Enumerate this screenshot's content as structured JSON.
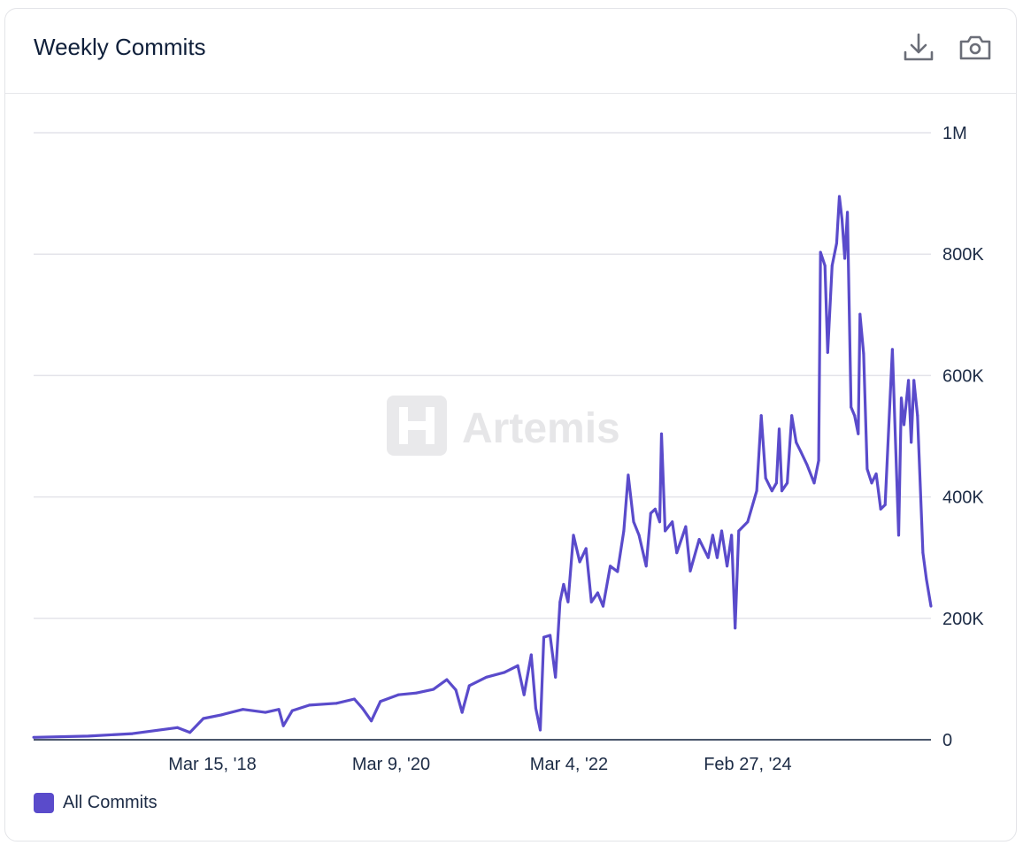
{
  "header": {
    "title": "Weekly Commits",
    "download_icon": "download-icon",
    "camera_icon": "camera-icon"
  },
  "watermark": "Artemis",
  "colors": {
    "series": "#5a4bcb",
    "grid": "#e4e4ea",
    "axis": "#0f1f3a"
  },
  "chart_data": {
    "type": "line",
    "title": "Weekly Commits",
    "xlabel": "",
    "ylabel": "",
    "x_units": "decimal year",
    "xlim": [
      2016.21,
      2026.2
    ],
    "ylim": [
      0,
      1000000
    ],
    "x_ticks": [
      {
        "value": 2018.2,
        "label": "Mar 15, '18"
      },
      {
        "value": 2020.19,
        "label": "Mar 9, '20"
      },
      {
        "value": 2022.17,
        "label": "Mar 4, '22"
      },
      {
        "value": 2024.16,
        "label": "Feb 27, '24"
      }
    ],
    "y_ticks": [
      {
        "value": 0,
        "label": "0"
      },
      {
        "value": 200000,
        "label": "200K"
      },
      {
        "value": 400000,
        "label": "400K"
      },
      {
        "value": 600000,
        "label": "600K"
      },
      {
        "value": 800000,
        "label": "800K"
      },
      {
        "value": 1000000,
        "label": "1M"
      }
    ],
    "grid": true,
    "legend_position": "bottom-left",
    "series": [
      {
        "name": "All Commits",
        "color": "#5a4bcb",
        "points": [
          [
            2016.21,
            4000
          ],
          [
            2016.82,
            6000
          ],
          [
            2017.31,
            10000
          ],
          [
            2017.81,
            20000
          ],
          [
            2017.95,
            12000
          ],
          [
            2018.1,
            35000
          ],
          [
            2018.3,
            41000
          ],
          [
            2018.54,
            50000
          ],
          [
            2018.79,
            45000
          ],
          [
            2018.94,
            50000
          ],
          [
            2018.99,
            23000
          ],
          [
            2019.09,
            48000
          ],
          [
            2019.28,
            57000
          ],
          [
            2019.58,
            60000
          ],
          [
            2019.78,
            67000
          ],
          [
            2019.87,
            52000
          ],
          [
            2019.97,
            31000
          ],
          [
            2020.07,
            63000
          ],
          [
            2020.27,
            74000
          ],
          [
            2020.47,
            77000
          ],
          [
            2020.66,
            83000
          ],
          [
            2020.81,
            99000
          ],
          [
            2020.91,
            82000
          ],
          [
            2020.98,
            45000
          ],
          [
            2021.06,
            89000
          ],
          [
            2021.25,
            103000
          ],
          [
            2021.45,
            111000
          ],
          [
            2021.6,
            122000
          ],
          [
            2021.67,
            74000
          ],
          [
            2021.75,
            140000
          ],
          [
            2021.8,
            52000
          ],
          [
            2021.85,
            16000
          ],
          [
            2021.89,
            169000
          ],
          [
            2021.96,
            172000
          ],
          [
            2022.02,
            103000
          ],
          [
            2022.07,
            227000
          ],
          [
            2022.11,
            256000
          ],
          [
            2022.16,
            227000
          ],
          [
            2022.22,
            337000
          ],
          [
            2022.29,
            293000
          ],
          [
            2022.36,
            315000
          ],
          [
            2022.42,
            227000
          ],
          [
            2022.49,
            242000
          ],
          [
            2022.55,
            220000
          ],
          [
            2022.63,
            286000
          ],
          [
            2022.71,
            277000
          ],
          [
            2022.78,
            344000
          ],
          [
            2022.83,
            436000
          ],
          [
            2022.89,
            359000
          ],
          [
            2022.95,
            337000
          ],
          [
            2023.03,
            286000
          ],
          [
            2023.08,
            373000
          ],
          [
            2023.13,
            380000
          ],
          [
            2023.18,
            359000
          ],
          [
            2023.2,
            504000
          ],
          [
            2023.24,
            344000
          ],
          [
            2023.32,
            359000
          ],
          [
            2023.37,
            308000
          ],
          [
            2023.47,
            351000
          ],
          [
            2023.52,
            278000
          ],
          [
            2023.62,
            330000
          ],
          [
            2023.72,
            300000
          ],
          [
            2023.77,
            337000
          ],
          [
            2023.82,
            300000
          ],
          [
            2023.87,
            344000
          ],
          [
            2023.93,
            286000
          ],
          [
            2023.98,
            337000
          ],
          [
            2024.02,
            184000
          ],
          [
            2024.06,
            344000
          ],
          [
            2024.16,
            359000
          ],
          [
            2024.26,
            410000
          ],
          [
            2024.31,
            534000
          ],
          [
            2024.36,
            431000
          ],
          [
            2024.43,
            410000
          ],
          [
            2024.48,
            423000
          ],
          [
            2024.51,
            512000
          ],
          [
            2024.54,
            410000
          ],
          [
            2024.6,
            423000
          ],
          [
            2024.65,
            534000
          ],
          [
            2024.7,
            490000
          ],
          [
            2024.75,
            475000
          ],
          [
            2024.82,
            453000
          ],
          [
            2024.9,
            423000
          ],
          [
            2024.95,
            460000
          ],
          [
            2024.97,
            803000
          ],
          [
            2025.02,
            781000
          ],
          [
            2025.05,
            638000
          ],
          [
            2025.1,
            781000
          ],
          [
            2025.15,
            818000
          ],
          [
            2025.18,
            895000
          ],
          [
            2025.21,
            857000
          ],
          [
            2025.24,
            793000
          ],
          [
            2025.27,
            869000
          ],
          [
            2025.31,
            548000
          ],
          [
            2025.35,
            534000
          ],
          [
            2025.39,
            504000
          ],
          [
            2025.41,
            701000
          ],
          [
            2025.45,
            636000
          ],
          [
            2025.49,
            446000
          ],
          [
            2025.54,
            423000
          ],
          [
            2025.59,
            438000
          ],
          [
            2025.64,
            380000
          ],
          [
            2025.69,
            387000
          ],
          [
            2025.77,
            643000
          ],
          [
            2025.84,
            337000
          ],
          [
            2025.87,
            563000
          ],
          [
            2025.9,
            519000
          ],
          [
            2025.95,
            592000
          ],
          [
            2025.98,
            490000
          ],
          [
            2026.01,
            592000
          ],
          [
            2026.05,
            534000
          ],
          [
            2026.11,
            308000
          ],
          [
            2026.15,
            264000
          ],
          [
            2026.2,
            220000
          ]
        ]
      }
    ]
  }
}
